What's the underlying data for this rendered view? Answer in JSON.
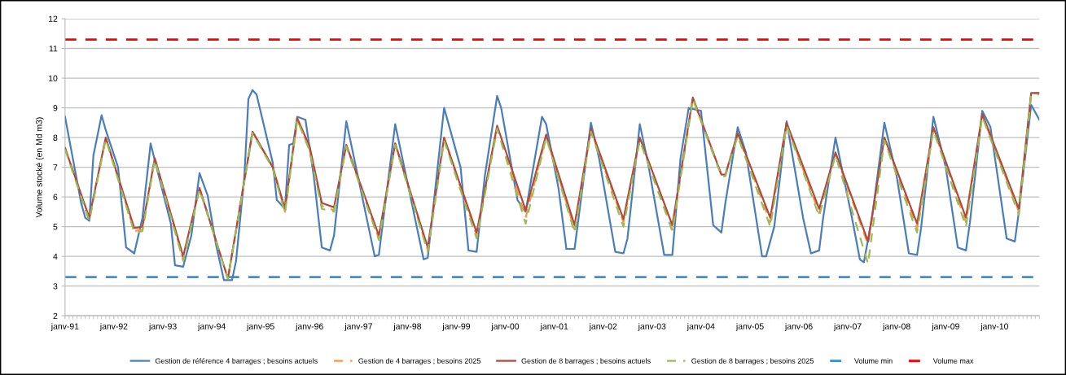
{
  "chart_data": {
    "type": "line",
    "ylabel": "Volume stocké (en Md m3)",
    "xlim": [
      "1991-01",
      "2010-12"
    ],
    "ylim": [
      2,
      12
    ],
    "yticks": [
      2,
      3,
      4,
      5,
      6,
      7,
      8,
      9,
      10,
      11,
      12
    ],
    "xticks": [
      {
        "value": "1991-01",
        "label": "janv-91"
      },
      {
        "value": "1992-01",
        "label": "janv-92"
      },
      {
        "value": "1993-01",
        "label": "janv-93"
      },
      {
        "value": "1994-01",
        "label": "janv-94"
      },
      {
        "value": "1995-01",
        "label": "janv-95"
      },
      {
        "value": "1996-01",
        "label": "janv-96"
      },
      {
        "value": "1997-01",
        "label": "janv-97"
      },
      {
        "value": "1998-01",
        "label": "janv-98"
      },
      {
        "value": "1999-01",
        "label": "janv-99"
      },
      {
        "value": "2000-01",
        "label": "janv-00"
      },
      {
        "value": "2001-01",
        "label": "janv-01"
      },
      {
        "value": "2002-01",
        "label": "janv-02"
      },
      {
        "value": "2003-01",
        "label": "janv-03"
      },
      {
        "value": "2004-01",
        "label": "janv-04"
      },
      {
        "value": "2005-01",
        "label": "janv-05"
      },
      {
        "value": "2006-01",
        "label": "janv-06"
      },
      {
        "value": "2007-01",
        "label": "janv-07"
      },
      {
        "value": "2008-01",
        "label": "janv-08"
      },
      {
        "value": "2009-01",
        "label": "janv-09"
      },
      {
        "value": "2010-01",
        "label": "janv-10"
      }
    ],
    "grid": "y",
    "legend": "bottom",
    "line_style": "solid",
    "series": [
      {
        "name": "Gestion de référence 4 barrages ; besoins actuels",
        "color": "#4a7ebb",
        "x": [
          "1991-01",
          "1991-05",
          "1991-06",
          "1991-07",
          "1991-08",
          "1991-10",
          "1991-11",
          "1992-02",
          "1992-04",
          "1992-06",
          "1992-08",
          "1992-10",
          "1992-12",
          "1993-03",
          "1993-04",
          "1993-06",
          "1993-08",
          "1993-10",
          "1993-12",
          "1994-02",
          "1994-04",
          "1994-06",
          "1994-07",
          "1994-09",
          "1994-10",
          "1994-11",
          "1994-12",
          "1995-04",
          "1995-05",
          "1995-07",
          "1995-08",
          "1995-09",
          "1995-10",
          "1995-12",
          "1996-02",
          "1996-04",
          "1996-06",
          "1996-07",
          "1996-10",
          "1997-05",
          "1997-06",
          "1997-10",
          "1998-05",
          "1998-06",
          "1998-10",
          "1999-02",
          "1999-04",
          "1999-06",
          "1999-08",
          "1999-11",
          "1999-12",
          "2000-04",
          "2000-06",
          "2000-10",
          "2000-11",
          "2001-02",
          "2001-04",
          "2001-06",
          "2001-10",
          "2001-12",
          "2002-04",
          "2002-06",
          "2002-07",
          "2002-10",
          "2002-12",
          "2003-04",
          "2003-06",
          "2003-08",
          "2003-10",
          "2004-01",
          "2004-04",
          "2004-06",
          "2004-07",
          "2004-10",
          "2004-12",
          "2005-04",
          "2005-05",
          "2005-07",
          "2005-10",
          "2006-02",
          "2006-04",
          "2006-06",
          "2006-07",
          "2006-10",
          "2007-02",
          "2007-04",
          "2007-05",
          "2007-07",
          "2007-10",
          "2008-01",
          "2008-04",
          "2008-06",
          "2008-07",
          "2008-10",
          "2009-01",
          "2009-04",
          "2009-06",
          "2009-07",
          "2009-10",
          "2009-12",
          "2010-04",
          "2010-06",
          "2010-07",
          "2010-10",
          "2010-12"
        ],
        "values": [
          8.7,
          5.8,
          5.3,
          5.2,
          7.4,
          8.75,
          8.25,
          7.0,
          4.3,
          4.1,
          5.3,
          7.8,
          6.7,
          5.1,
          3.7,
          3.65,
          4.7,
          6.8,
          6.05,
          4.4,
          3.2,
          3.2,
          3.85,
          6.7,
          9.3,
          9.6,
          9.45,
          7.15,
          5.9,
          5.6,
          7.75,
          7.8,
          8.7,
          8.6,
          6.7,
          4.3,
          4.2,
          4.7,
          8.55,
          4.0,
          4.05,
          8.45,
          3.9,
          3.95,
          9.0,
          7.0,
          4.2,
          4.15,
          6.7,
          9.4,
          9.0,
          5.9,
          5.5,
          8.7,
          8.45,
          6.3,
          4.25,
          4.25,
          8.5,
          7.3,
          4.15,
          4.1,
          4.6,
          8.45,
          7.15,
          4.05,
          4.05,
          7.3,
          9.0,
          8.9,
          5.05,
          4.8,
          5.8,
          8.35,
          7.5,
          4.0,
          4.0,
          5.0,
          8.55,
          5.3,
          4.1,
          4.2,
          5.3,
          8.0,
          5.3,
          3.9,
          3.8,
          5.3,
          8.5,
          6.7,
          4.1,
          4.05,
          4.95,
          8.7,
          7.0,
          4.3,
          4.2,
          5.15,
          8.9,
          8.35,
          4.6,
          4.5,
          5.5,
          9.1,
          8.6
        ]
      },
      {
        "name": "Gestion de 4 barrages ; besoins 2025",
        "color": "#f79646",
        "line_style": "dashed",
        "x": [
          "1991-01",
          "1991-07",
          "1991-11",
          "1992-06",
          "1992-08",
          "1992-11",
          "1993-06",
          "1993-10",
          "1994-05",
          "1994-11",
          "1995-04",
          "1995-07",
          "1995-10",
          "1996-01",
          "1996-04",
          "1996-07",
          "1996-10",
          "1997-06",
          "1997-10",
          "1998-06",
          "1998-10",
          "1999-06",
          "1999-11",
          "2000-06",
          "2000-11",
          "2001-06",
          "2001-10",
          "2002-06",
          "2002-10",
          "2003-06",
          "2003-11",
          "2004-06",
          "2004-07",
          "2004-10",
          "2005-06",
          "2005-10",
          "2006-06",
          "2006-10",
          "2007-06",
          "2007-10",
          "2008-06",
          "2008-10",
          "2009-06",
          "2009-10",
          "2010-07",
          "2010-10",
          "2010-12"
        ],
        "values": [
          7.65,
          5.2,
          8.0,
          4.85,
          4.9,
          7.3,
          3.9,
          6.3,
          3.25,
          8.2,
          7.0,
          5.5,
          8.6,
          7.6,
          5.7,
          5.55,
          7.75,
          4.6,
          7.8,
          4.2,
          7.95,
          4.7,
          8.35,
          5.3,
          8.05,
          4.9,
          8.25,
          5.15,
          7.95,
          4.9,
          9.3,
          6.75,
          6.75,
          8.1,
          5.15,
          8.45,
          5.45,
          7.45,
          4.4,
          7.95,
          4.95,
          8.3,
          5.15,
          8.75,
          5.5,
          9.5,
          9.5
        ]
      },
      {
        "name": "Gestion de 8 barrages ; besoins actuels",
        "color": "#b04a3c",
        "x": [
          "1991-01",
          "1991-07",
          "1991-11",
          "1992-06",
          "1992-08",
          "1992-11",
          "1993-06",
          "1993-10",
          "1994-05",
          "1994-11",
          "1995-04",
          "1995-07",
          "1995-10",
          "1996-01",
          "1996-04",
          "1996-07",
          "1996-10",
          "1997-06",
          "1997-10",
          "1998-06",
          "1998-10",
          "1999-06",
          "1999-11",
          "2000-06",
          "2000-11",
          "2001-06",
          "2001-10",
          "2002-06",
          "2002-10",
          "2003-06",
          "2003-11",
          "2004-06",
          "2004-07",
          "2004-10",
          "2005-06",
          "2005-10",
          "2006-06",
          "2006-10",
          "2007-06",
          "2007-10",
          "2008-06",
          "2008-10",
          "2009-06",
          "2009-10",
          "2010-07",
          "2010-10",
          "2010-12"
        ],
        "values": [
          7.65,
          5.3,
          8.0,
          4.95,
          5.0,
          7.3,
          4.0,
          6.3,
          3.25,
          8.2,
          7.0,
          5.6,
          8.65,
          7.7,
          5.8,
          5.65,
          7.75,
          4.7,
          7.8,
          4.3,
          8.0,
          4.8,
          8.4,
          5.55,
          8.1,
          5.05,
          8.3,
          5.25,
          8.0,
          5.05,
          9.35,
          6.75,
          6.75,
          8.15,
          5.3,
          8.5,
          5.6,
          7.5,
          4.5,
          8.0,
          5.1,
          8.35,
          5.3,
          8.8,
          5.6,
          9.5,
          9.5
        ]
      },
      {
        "name": "Gestion de 8 barrages ; besoins 2025",
        "color": "#9bbb59",
        "line_style": "dashed",
        "x": [
          "1991-01",
          "1991-07",
          "1991-11",
          "1992-06",
          "1992-08",
          "1992-11",
          "1993-06",
          "1993-10",
          "1994-05",
          "1994-11",
          "1995-04",
          "1995-07",
          "1995-10",
          "1996-01",
          "1996-04",
          "1996-07",
          "1996-10",
          "1997-06",
          "1997-10",
          "1998-06",
          "1998-10",
          "1999-06",
          "1999-11",
          "2000-06",
          "2000-11",
          "2001-06",
          "2001-10",
          "2002-06",
          "2002-10",
          "2003-06",
          "2003-11",
          "2004-06",
          "2004-07",
          "2004-10",
          "2005-06",
          "2005-10",
          "2006-06",
          "2006-10",
          "2007-06",
          "2007-10",
          "2008-06",
          "2008-10",
          "2009-06",
          "2009-10",
          "2010-07",
          "2010-10",
          "2010-12"
        ],
        "values": [
          7.6,
          5.2,
          7.95,
          4.8,
          4.85,
          7.25,
          3.85,
          6.25,
          3.25,
          8.15,
          6.95,
          5.45,
          8.6,
          7.55,
          5.6,
          5.5,
          7.7,
          4.55,
          7.75,
          4.15,
          7.9,
          4.6,
          8.3,
          5.1,
          8.0,
          4.8,
          8.2,
          5.0,
          7.9,
          4.85,
          9.3,
          6.7,
          6.7,
          8.05,
          5.0,
          8.4,
          5.35,
          7.4,
          3.75,
          7.9,
          4.8,
          8.25,
          5.0,
          8.7,
          5.4,
          9.45,
          9.45
        ]
      }
    ],
    "ref_lines": [
      {
        "axis": "y",
        "value": 3.3,
        "label": "Volume min",
        "color": "#3c8fd8",
        "line_style": "dashed"
      },
      {
        "axis": "y",
        "value": 11.3,
        "label": "Volume max",
        "color": "#ff0000",
        "line_style": "dashed"
      }
    ]
  }
}
